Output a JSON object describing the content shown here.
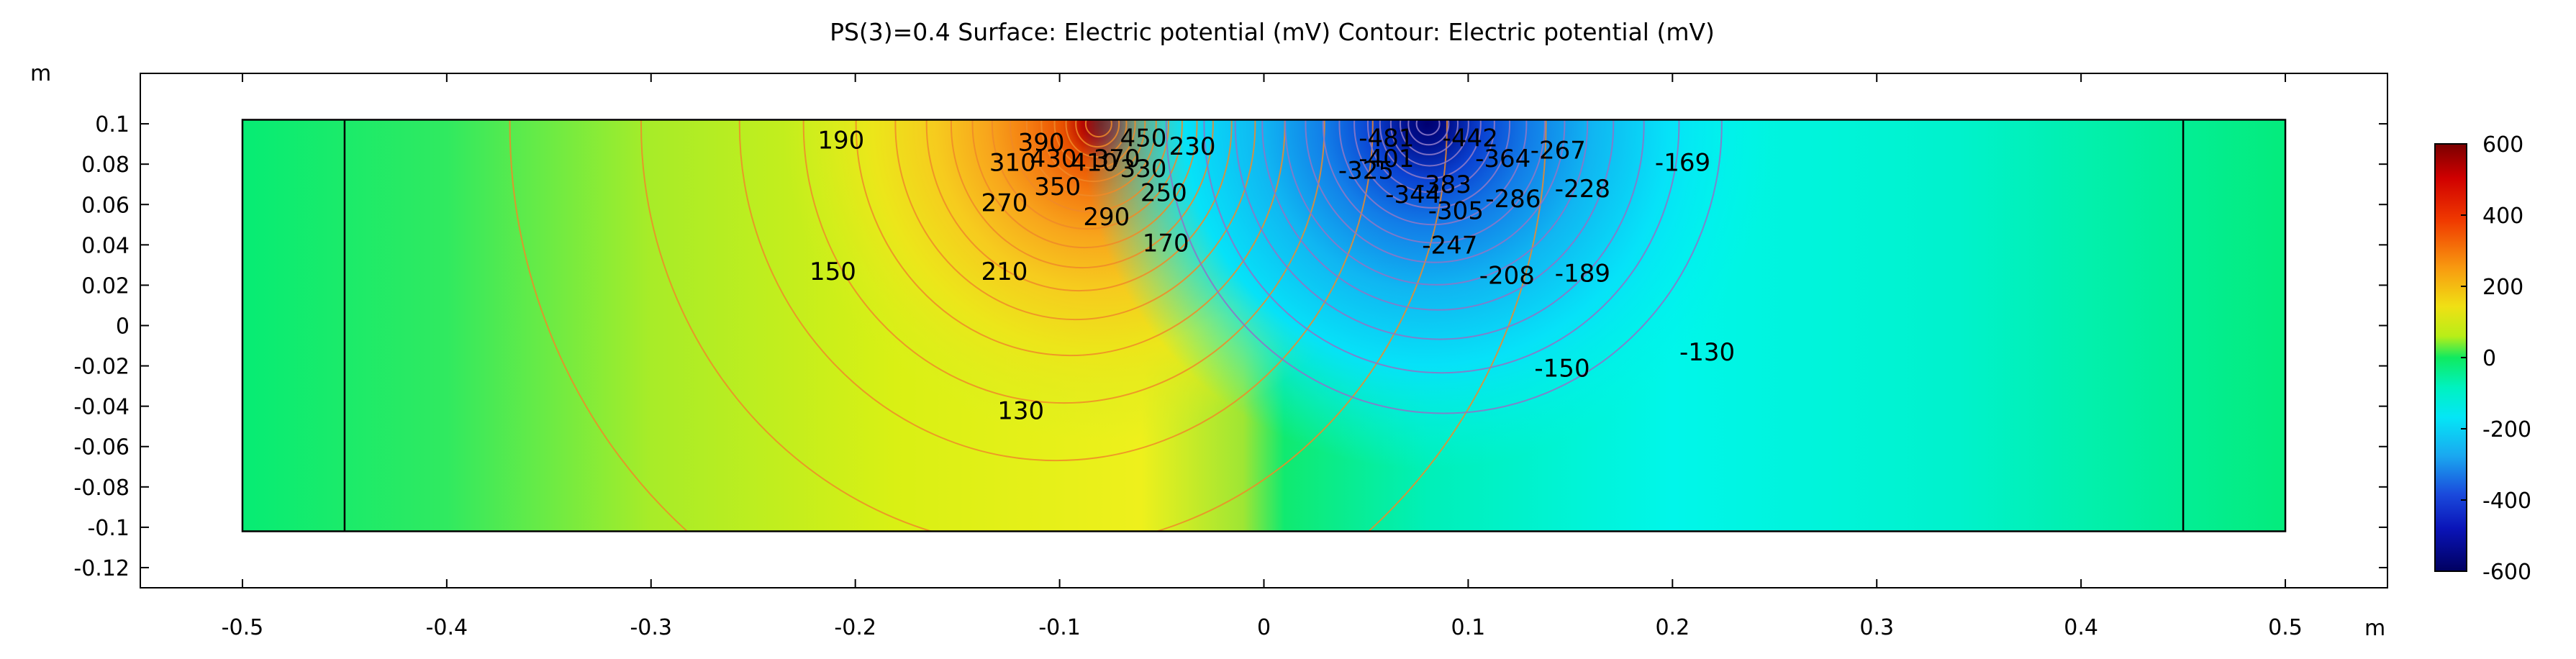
{
  "chart_data": {
    "type": "heatmap",
    "title": "PS(3)=0.4   Surface: Electric potential (mV)  Contour: Electric potential (mV)",
    "xlabel": "m",
    "ylabel": "m",
    "xlim": [
      -0.55,
      0.55
    ],
    "ylim": [
      -0.13,
      0.125
    ],
    "x_ticks": [
      "-0.5",
      "-0.4",
      "-0.3",
      "-0.2",
      "-0.1",
      "0",
      "0.1",
      "0.2",
      "0.3",
      "0.4",
      "0.5"
    ],
    "x_tick_values": [
      -0.5,
      -0.4,
      -0.3,
      -0.2,
      -0.1,
      0,
      0.1,
      0.2,
      0.3,
      0.4,
      0.5
    ],
    "y_ticks": [
      "0.1",
      "0.08",
      "0.06",
      "0.04",
      "0.02",
      "0",
      "-0.02",
      "-0.04",
      "-0.06",
      "-0.08",
      "-0.1",
      "-0.12"
    ],
    "y_tick_values": [
      0.1,
      0.08,
      0.06,
      0.04,
      0.02,
      0,
      -0.02,
      -0.04,
      -0.06,
      -0.08,
      -0.1,
      -0.12
    ],
    "domain": {
      "x": [
        -0.5,
        0.5
      ],
      "y": [
        -0.102,
        0.102
      ]
    },
    "internal_boundaries_x": [
      -0.45,
      0.45
    ],
    "colorbar": {
      "range": [
        -600,
        600
      ],
      "ticks": [
        "600",
        "400",
        "200",
        "0",
        "-200",
        "-400",
        "-600"
      ],
      "tick_values": [
        600,
        400,
        200,
        0,
        -200,
        -400,
        -600
      ]
    },
    "sources": [
      {
        "name": "positive",
        "x": -0.08,
        "y": 0.1,
        "peak": 600
      },
      {
        "name": "negative",
        "x": 0.08,
        "y": 0.1,
        "peak": -600
      }
    ],
    "contour_labels": [
      {
        "text": "190",
        "x": -0.207,
        "y": 0.092
      },
      {
        "text": "390",
        "x": -0.109,
        "y": 0.091
      },
      {
        "text": "450",
        "x": -0.059,
        "y": 0.093
      },
      {
        "text": "230",
        "x": -0.035,
        "y": 0.089
      },
      {
        "text": "310",
        "x": -0.123,
        "y": 0.081
      },
      {
        "text": "430",
        "x": -0.103,
        "y": 0.083
      },
      {
        "text": "410",
        "x": -0.083,
        "y": 0.081
      },
      {
        "text": "370",
        "x": -0.072,
        "y": 0.083
      },
      {
        "text": "330",
        "x": -0.059,
        "y": 0.078
      },
      {
        "text": "350",
        "x": -0.101,
        "y": 0.069
      },
      {
        "text": "270",
        "x": -0.127,
        "y": 0.061
      },
      {
        "text": "250",
        "x": -0.049,
        "y": 0.066
      },
      {
        "text": "290",
        "x": -0.077,
        "y": 0.054
      },
      {
        "text": "170",
        "x": -0.048,
        "y": 0.041
      },
      {
        "text": "150",
        "x": -0.211,
        "y": 0.027
      },
      {
        "text": "210",
        "x": -0.127,
        "y": 0.027
      },
      {
        "text": "130",
        "x": -0.119,
        "y": -0.042
      },
      {
        "text": "-481",
        "x": 0.06,
        "y": 0.093
      },
      {
        "text": "-442",
        "x": 0.101,
        "y": 0.093
      },
      {
        "text": "-401",
        "x": 0.06,
        "y": 0.083
      },
      {
        "text": "-364",
        "x": 0.117,
        "y": 0.083
      },
      {
        "text": "-267",
        "x": 0.144,
        "y": 0.087
      },
      {
        "text": "-169",
        "x": 0.205,
        "y": 0.081
      },
      {
        "text": "-325",
        "x": 0.05,
        "y": 0.077
      },
      {
        "text": "-383",
        "x": 0.088,
        "y": 0.07
      },
      {
        "text": "-344",
        "x": 0.073,
        "y": 0.065
      },
      {
        "text": "-228",
        "x": 0.156,
        "y": 0.068
      },
      {
        "text": "-286",
        "x": 0.122,
        "y": 0.063
      },
      {
        "text": "-305",
        "x": 0.094,
        "y": 0.057
      },
      {
        "text": "-247",
        "x": 0.091,
        "y": 0.04
      },
      {
        "text": "-208",
        "x": 0.119,
        "y": 0.025
      },
      {
        "text": "-189",
        "x": 0.156,
        "y": 0.026
      },
      {
        "text": "-150",
        "x": 0.146,
        "y": -0.021
      },
      {
        "text": "-130",
        "x": 0.217,
        "y": -0.013
      }
    ]
  }
}
